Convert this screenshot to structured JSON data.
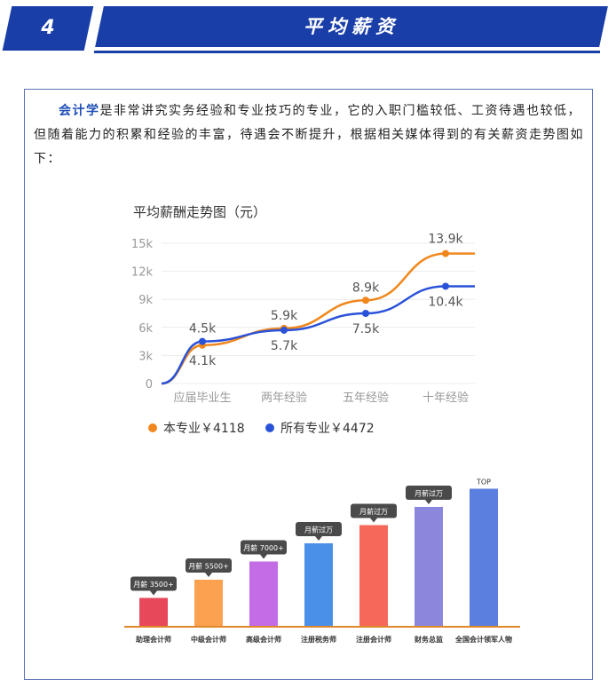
{
  "header": {
    "number": "4",
    "title": "平均薪资"
  },
  "intro": {
    "keyword": "会计学",
    "text": "是非常讲究实务经验和专业技巧的专业，它的入职门槛较低、工资待遇也较低，但随着能力的积累和经验的丰富，待遇会不断提升，根据相关媒体得到的有关薪资走势图如下："
  },
  "chart_data": [
    {
      "type": "line",
      "title": "平均薪酬走势图（元）",
      "categories": [
        "应届毕业生",
        "两年经验",
        "五年经验",
        "十年经验"
      ],
      "y_ticks": [
        "0",
        "3k",
        "6k",
        "9k",
        "12k",
        "15k"
      ],
      "ylim": [
        0,
        15000
      ],
      "series": [
        {
          "name": "本专业",
          "legend": "本专业￥4118",
          "color": "#f0871c",
          "values": [
            4100,
            5900,
            8900,
            13900
          ],
          "labels": [
            "4.1k",
            "5.9k",
            "8.9k",
            "13.9k"
          ]
        },
        {
          "name": "所有专业",
          "legend": "所有专业￥4472",
          "color": "#2a52d8",
          "values": [
            4500,
            5700,
            7500,
            10400
          ],
          "labels": [
            "4.5k",
            "5.7k",
            "7.5k",
            "10.4k"
          ]
        }
      ]
    },
    {
      "type": "bar",
      "categories": [
        "助理会计师",
        "中级会计师",
        "高级会计师",
        "注册税务师",
        "注册会计师",
        "财务总监",
        "全国会计领军人物"
      ],
      "values": [
        1,
        2,
        3,
        4,
        5,
        6,
        7
      ],
      "callouts": [
        "月薪 3500+",
        "月薪 5500+",
        "月薪 7000+",
        "月薪过万",
        "月薪过万",
        "月薪过万",
        "TOP"
      ],
      "colors": [
        "#e8495a",
        "#fba14f",
        "#c46be6",
        "#4a90e8",
        "#f5685a",
        "#8a87dd",
        "#5a7fde"
      ]
    }
  ]
}
